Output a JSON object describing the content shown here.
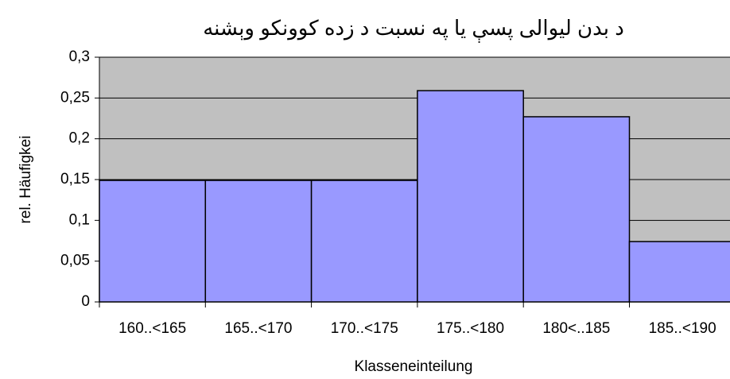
{
  "chart_data": {
    "type": "bar",
    "title": "د بدن ليوالی پسې يا په نسبت  د زده كوونكو وېشنه",
    "xlabel": "Klasseneinteilung",
    "ylabel": "rel. Häufigkei",
    "categories": [
      "160..<165",
      "165..<170",
      "170..<175",
      "175..<180",
      "180<..185",
      "185..<190"
    ],
    "values": [
      0.149,
      0.149,
      0.149,
      0.259,
      0.227,
      0.074
    ],
    "color": "#9999ff",
    "background": "#c0c0c0",
    "ylim": [
      0,
      0.3
    ],
    "yticks": [
      0,
      {
        "value": 0.05,
        "label": "0,05"
      },
      {
        "value": 0.1,
        "label": "0,1"
      },
      {
        "value": 0.15,
        "label": "0,15"
      },
      {
        "value": 0.2,
        "label": "0,2"
      },
      {
        "value": 0.25,
        "label": "0,25"
      },
      {
        "value": 0.3,
        "label": "0,3"
      }
    ],
    "grid": true
  }
}
